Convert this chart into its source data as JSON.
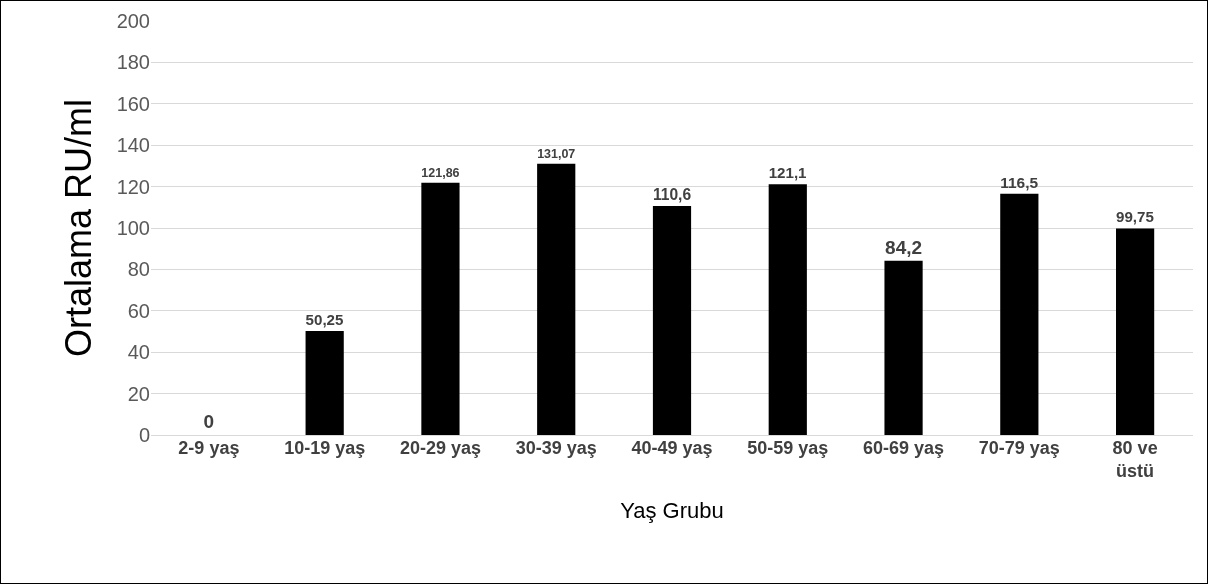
{
  "chart_data": {
    "type": "bar",
    "xlabel": "Yaş Grubu",
    "ylabel": "Ortalama RU/ml",
    "categories": [
      "2-9 yaş",
      "10-19 yaş",
      "20-29 yaş",
      "30-39 yaş",
      "40-49 yaş",
      "50-59 yaş",
      "60-69 yaş",
      "70-79 yaş",
      "80 ve\nüstü"
    ],
    "values": [
      0,
      50.25,
      121.86,
      131.07,
      110.6,
      121.1,
      84.2,
      116.5,
      99.75
    ],
    "value_labels": [
      "0",
      "50,25",
      "121,86",
      "131,07",
      "110,6",
      "121,1",
      "84,2",
      "116,5",
      "99,75"
    ],
    "color": "#000000",
    "ylim": [
      0,
      200
    ],
    "yticks": [
      0,
      20,
      40,
      60,
      80,
      100,
      120,
      140,
      160,
      180,
      200
    ],
    "grid": "y",
    "legend": false
  }
}
